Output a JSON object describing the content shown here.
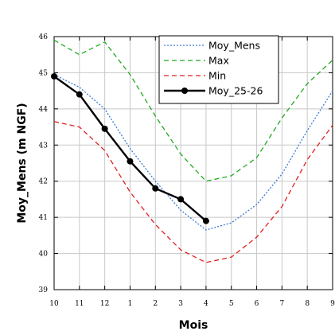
{
  "chart_data": {
    "type": "line",
    "title": "",
    "xlabel": "Mois",
    "ylabel": "Moy_Mens (m NGF)",
    "categories": [
      "10",
      "11",
      "12",
      "1",
      "2",
      "3",
      "4",
      "5",
      "6",
      "7",
      "8",
      "9"
    ],
    "ylim": [
      39,
      46
    ],
    "yticks": [
      "39",
      "40",
      "41",
      "42",
      "43",
      "44",
      "45",
      "46"
    ],
    "grid": true,
    "legend_position": "top-right",
    "series": [
      {
        "name": "Moy_Mens",
        "color": "#3a7bd5",
        "style": "dotted",
        "values": [
          44.95,
          44.6,
          44.0,
          42.9,
          42.0,
          41.2,
          40.65,
          40.85,
          41.35,
          42.2,
          43.4,
          44.5
        ]
      },
      {
        "name": "Max",
        "color": "#22aa22",
        "style": "dashed",
        "values": [
          45.9,
          45.5,
          45.85,
          44.95,
          43.8,
          42.75,
          42.0,
          42.15,
          42.65,
          43.75,
          44.7,
          45.35
        ]
      },
      {
        "name": "Min",
        "color": "#e02020",
        "style": "dashed",
        "values": [
          43.65,
          43.5,
          42.85,
          41.7,
          40.8,
          40.1,
          39.75,
          39.9,
          40.45,
          41.3,
          42.6,
          43.55
        ]
      },
      {
        "name": "Moy_25-26",
        "color": "#000000",
        "style": "solid-markers",
        "values": [
          44.9,
          44.4,
          43.45,
          42.55,
          41.8,
          41.5,
          40.9,
          null,
          null,
          null,
          null,
          null
        ]
      }
    ]
  }
}
